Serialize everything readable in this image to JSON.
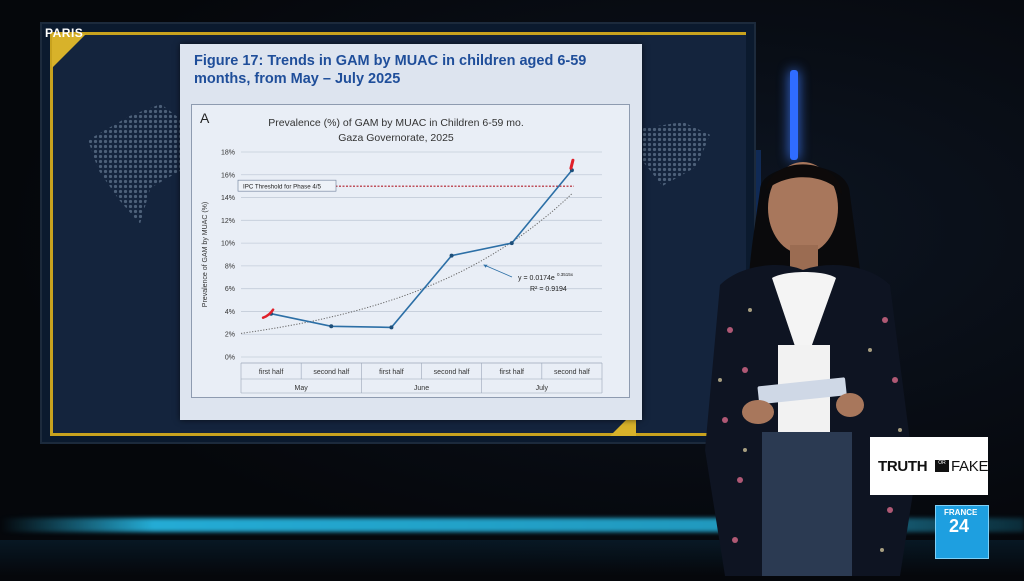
{
  "broadcast": {
    "location": "PARIS",
    "program_logo": {
      "word1": "TRUTH",
      "connector": "OR",
      "word2": "FAKE"
    },
    "channel_logo": {
      "name": "FRANCE",
      "number": "24"
    }
  },
  "figure": {
    "title": "Figure 17: Trends in GAM by MUAC in children aged 6-59 months, from May – July 2025",
    "panel_label": "A",
    "plot_title_line1": "Prevalence (%) of GAM by MUAC in Children 6-59 mo.",
    "plot_title_line2": "Gaza Governorate, 2025",
    "threshold_label": "IPC Threshold for Phase 4/5",
    "trend_equation": "y = 0.0174e",
    "trend_exponent": "0.3515x",
    "trend_r2": "R² = 0.9194"
  },
  "chart_data": {
    "type": "line",
    "ylabel": "Prevalence of GAM by MUAC (%)",
    "ylim": [
      0,
      18
    ],
    "yticks": [
      "0%",
      "2%",
      "4%",
      "6%",
      "8%",
      "10%",
      "12%",
      "14%",
      "16%",
      "18%"
    ],
    "categories": [
      "first half",
      "second half",
      "first half",
      "second half",
      "first half",
      "second half"
    ],
    "category_groups": [
      {
        "label": "May",
        "span": 2
      },
      {
        "label": "June",
        "span": 2
      },
      {
        "label": "July",
        "span": 2
      }
    ],
    "series": [
      {
        "values": [
          3.8,
          2.7,
          2.6,
          8.9,
          10.0,
          16.4
        ],
        "color": "#2c6fa6"
      }
    ],
    "threshold": {
      "value": 15.0,
      "color": "#b11f2a"
    },
    "trendline": {
      "a": 0.0174,
      "b": 0.3515,
      "style": "dotted",
      "color": "#666666"
    },
    "grid": true,
    "highlight_color": "#e0202a"
  }
}
